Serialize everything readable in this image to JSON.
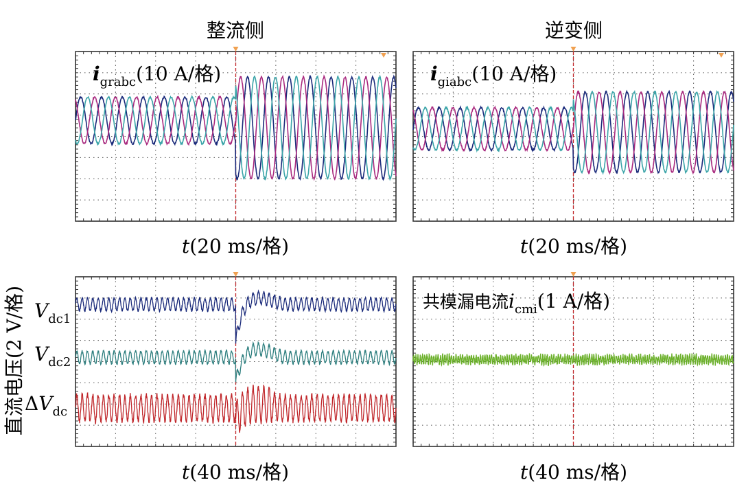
{
  "colors": {
    "phase_a": "#1a2a7a",
    "phase_b": "#a8287e",
    "phase_c": "#3aa4a8",
    "vdc1": "#1a2a7a",
    "vdc2": "#2e7f7f",
    "dvdc": "#c0262a",
    "cmi": "#6bb02a",
    "trigger": "#c0262a",
    "trigger_marker": "#f0a050",
    "grid": "#555555"
  },
  "headers": {
    "rectifier": "整流侧",
    "inverter": "逆变侧"
  },
  "shared_axis": {
    "ylabel": "直流电压(2 V/格)"
  },
  "chart_data": [
    {
      "type": "line",
      "panel": "rectifier-currents",
      "label_main": "i",
      "label_sub": "grabc",
      "label_scale": "(10 A/格)",
      "xlabel_var": "t",
      "xlabel_scale": "(20 ms/格)",
      "x_divisions": 8,
      "y_divisions": 8,
      "xlim": [
        0,
        8
      ],
      "ylim": [
        -4,
        4
      ],
      "grid": true,
      "trigger_division": 4,
      "step_division": 4,
      "periods_per_division": 1.92,
      "series": [
        {
          "phase_deg": 0,
          "amp_before": 1.1,
          "amp_after": 2.4,
          "offset_before": 0.75,
          "offset_after": 0.4
        },
        {
          "phase_deg": 120,
          "amp_before": 1.1,
          "amp_after": 2.4,
          "offset_before": 0.75,
          "offset_after": 0.4
        },
        {
          "phase_deg": 240,
          "amp_before": 1.1,
          "amp_after": 2.4,
          "offset_before": 0.75,
          "offset_after": 0.4
        }
      ]
    },
    {
      "type": "line",
      "panel": "inverter-currents",
      "label_main": "i",
      "label_sub": "giabc",
      "label_scale": "(10 A/格)",
      "xlabel_var": "t",
      "xlabel_scale": "(20 ms/格)",
      "x_divisions": 8,
      "y_divisions": 8,
      "xlim": [
        0,
        8
      ],
      "ylim": [
        -4,
        4
      ],
      "grid": true,
      "trigger_division": 4,
      "step_division": 4,
      "periods_per_division": 1.92,
      "series": [
        {
          "phase_deg": 0,
          "amp_before": 1.0,
          "amp_after": 1.9,
          "offset_before": 0.35,
          "offset_after": 0.2
        },
        {
          "phase_deg": 120,
          "amp_before": 1.0,
          "amp_after": 1.9,
          "offset_before": 0.35,
          "offset_after": 0.2
        },
        {
          "phase_deg": 240,
          "amp_before": 1.0,
          "amp_after": 1.9,
          "offset_before": 0.35,
          "offset_after": 0.2
        }
      ]
    },
    {
      "type": "line",
      "panel": "dc-voltages",
      "xlabel_var": "t",
      "xlabel_scale": "(40 ms/格)",
      "x_divisions": 8,
      "y_divisions": 8,
      "xlim": [
        0,
        8
      ],
      "ylim": [
        -4,
        4
      ],
      "grid": true,
      "trigger_division": 4,
      "step_division": 4,
      "series": [
        {
          "name": "V",
          "sub": "dc1",
          "prefix": "",
          "level": 2.7,
          "amp": 0.3,
          "cycles_per_division": 7.5,
          "transient_dip": -1.8,
          "transient_rise": 0.6
        },
        {
          "name": "V",
          "sub": "dc2",
          "prefix": "",
          "level": 0.2,
          "amp": 0.3,
          "cycles_per_division": 7.5,
          "transient_dip": -1.2,
          "transient_rise": 0.7
        },
        {
          "name": "V",
          "sub": "dc",
          "prefix": "Δ",
          "level": -2.2,
          "amp": 0.62,
          "cycles_per_division": 7.5,
          "transient_dip": -0.6,
          "transient_rise": 0.35
        }
      ]
    },
    {
      "type": "line",
      "panel": "common-mode-current",
      "label_prefix": "共模漏电流",
      "label_main": "i",
      "label_sub": "cmi",
      "label_scale": "(1 A/格)",
      "xlabel_var": "t",
      "xlabel_scale": "(40 ms/格)",
      "x_divisions": 8,
      "y_divisions": 8,
      "xlim": [
        0,
        8
      ],
      "ylim": [
        -4,
        4
      ],
      "grid": true,
      "trigger_division": 4,
      "series": [
        {
          "level": 0.1,
          "amp": 0.18
        }
      ]
    }
  ]
}
